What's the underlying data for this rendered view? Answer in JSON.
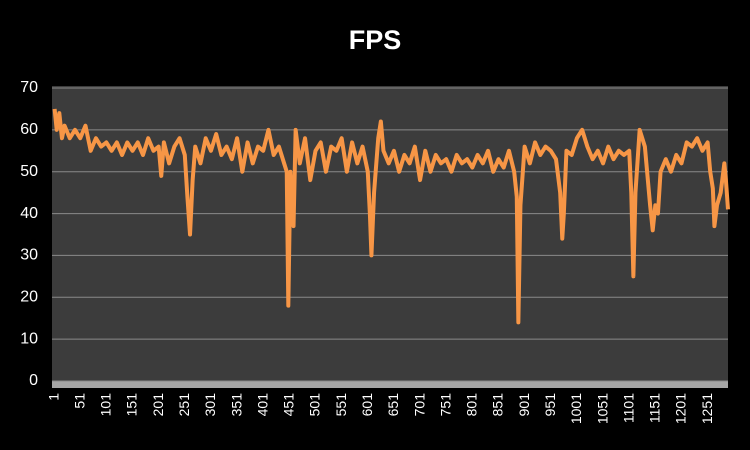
{
  "chart_data": {
    "type": "line",
    "title": "FPS",
    "x": [
      1,
      5,
      10,
      15,
      20,
      30,
      40,
      50,
      60,
      70,
      80,
      90,
      100,
      110,
      120,
      130,
      140,
      150,
      160,
      170,
      180,
      190,
      200,
      205,
      210,
      220,
      230,
      240,
      250,
      255,
      260,
      265,
      270,
      280,
      290,
      300,
      310,
      320,
      330,
      340,
      350,
      360,
      370,
      380,
      390,
      400,
      410,
      420,
      430,
      440,
      445,
      448,
      452,
      458,
      462,
      470,
      480,
      490,
      500,
      510,
      520,
      530,
      540,
      550,
      560,
      570,
      580,
      590,
      600,
      604,
      607,
      612,
      620,
      625,
      630,
      640,
      650,
      660,
      670,
      680,
      690,
      700,
      710,
      720,
      730,
      740,
      750,
      760,
      770,
      780,
      790,
      800,
      810,
      820,
      830,
      840,
      850,
      860,
      870,
      880,
      885,
      888,
      892,
      900,
      910,
      920,
      930,
      940,
      950,
      960,
      968,
      972,
      975,
      980,
      990,
      1000,
      1010,
      1020,
      1030,
      1040,
      1050,
      1060,
      1070,
      1080,
      1090,
      1100,
      1104,
      1108,
      1112,
      1120,
      1130,
      1140,
      1145,
      1150,
      1155,
      1160,
      1170,
      1180,
      1190,
      1200,
      1210,
      1220,
      1230,
      1240,
      1250,
      1255,
      1260,
      1263,
      1268,
      1275,
      1282,
      1285,
      1289
    ],
    "series": [
      {
        "name": "FPS",
        "color": "#f79646",
        "values": [
          65,
          60,
          64,
          58,
          61,
          58,
          60,
          58,
          61,
          55,
          58,
          56,
          57,
          55,
          57,
          54,
          57,
          55,
          57,
          54,
          58,
          55,
          56,
          49,
          57,
          52,
          56,
          58,
          54,
          44,
          35,
          48,
          56,
          52,
          58,
          55,
          59,
          54,
          56,
          53,
          58,
          50,
          57,
          52,
          56,
          55,
          60,
          54,
          56,
          52,
          50,
          18,
          50,
          37,
          60,
          52,
          58,
          48,
          55,
          57,
          50,
          56,
          55,
          58,
          50,
          57,
          52,
          56,
          50,
          40,
          30,
          45,
          58,
          62,
          55,
          52,
          55,
          50,
          54,
          52,
          56,
          48,
          55,
          50,
          54,
          52,
          53,
          50,
          54,
          52,
          53,
          51,
          54,
          52,
          55,
          50,
          53,
          51,
          55,
          50,
          44,
          14,
          42,
          56,
          52,
          57,
          54,
          56,
          55,
          53,
          45,
          34,
          40,
          55,
          54,
          58,
          60,
          56,
          53,
          55,
          52,
          56,
          53,
          55,
          54,
          55,
          45,
          25,
          45,
          60,
          56,
          42,
          36,
          42,
          40,
          50,
          53,
          50,
          54,
          52,
          57,
          56,
          58,
          55,
          57,
          50,
          46,
          37,
          42,
          45,
          52,
          48,
          41
        ]
      }
    ],
    "xlim": [
      -4,
      1289
    ],
    "xticks": [
      1,
      51,
      101,
      151,
      201,
      251,
      301,
      351,
      401,
      451,
      501,
      551,
      601,
      651,
      701,
      751,
      801,
      851,
      901,
      951,
      1001,
      1051,
      1101,
      1151,
      1201,
      1251
    ],
    "ylim": [
      0,
      70
    ],
    "yticks": [
      0,
      10,
      20,
      30,
      40,
      50,
      60,
      70
    ],
    "grid": true
  }
}
